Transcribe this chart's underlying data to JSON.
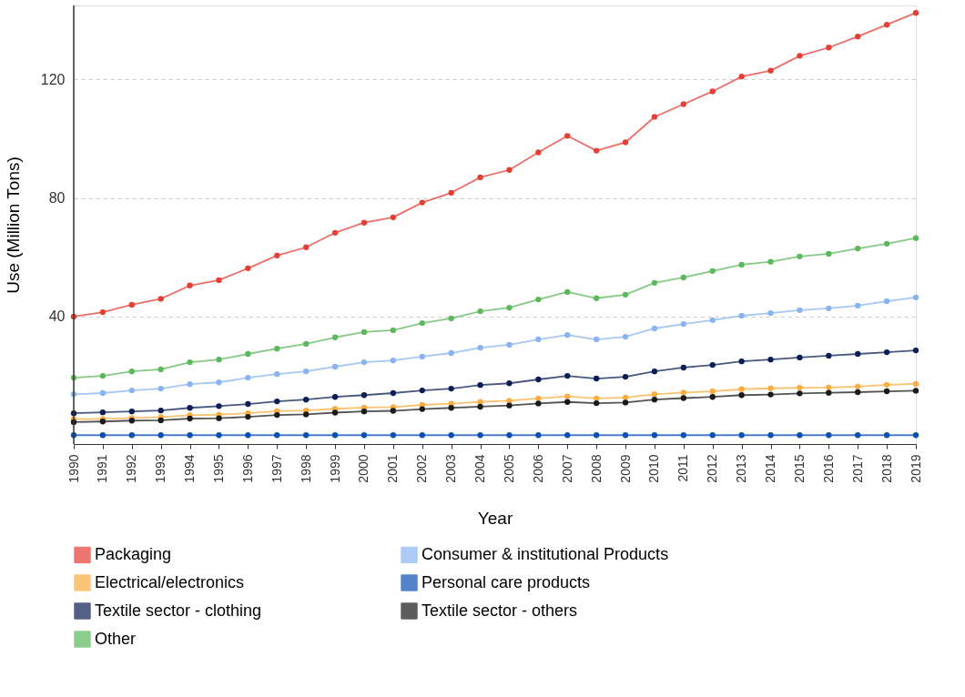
{
  "chart_data": {
    "type": "line",
    "xlabel": "Year",
    "ylabel": "Use (Million Tons)",
    "categories": [
      "1990",
      "1991",
      "1992",
      "1993",
      "1994",
      "1995",
      "1996",
      "1997",
      "1998",
      "1999",
      "2000",
      "2001",
      "2002",
      "2003",
      "2004",
      "2005",
      "2006",
      "2007",
      "2008",
      "2009",
      "2010",
      "2011",
      "2012",
      "2013",
      "2014",
      "2015",
      "2016",
      "2017",
      "2018",
      "2019"
    ],
    "series": [
      {
        "name": "Packaging",
        "color": "#e53e35",
        "values": [
          40,
          41.5,
          44,
          46,
          50.5,
          52.3,
          56.3,
          60.6,
          63.4,
          68.3,
          71.7,
          73.5,
          78.5,
          81.8,
          87,
          89.5,
          95.4,
          101,
          96,
          98.8,
          107.4,
          111.7,
          116,
          121,
          123,
          128,
          130.8,
          134.5,
          138.5,
          142.5
        ]
      },
      {
        "name": "Consumer & institutional Products",
        "color": "#8ab4f0",
        "values": [
          13.8,
          14.2,
          15.1,
          15.7,
          17.2,
          17.8,
          19.4,
          20.6,
          21.5,
          23.1,
          24.6,
          25.2,
          26.5,
          27.7,
          29.5,
          30.5,
          32.3,
          33.8,
          32.3,
          33.2,
          36,
          37.5,
          38.8,
          40.3,
          41.2,
          42.2,
          42.8,
          43.7,
          45.2,
          46.5
        ]
      },
      {
        "name": "Electrical/electronics",
        "color": "#fbad3f",
        "values": [
          5.4,
          5.5,
          5.8,
          6.1,
          6.7,
          6.9,
          7.4,
          8.1,
          8.3,
          8.9,
          9.3,
          9.5,
          10.2,
          10.6,
          11.2,
          11.6,
          12.4,
          13.1,
          12.4,
          12.7,
          13.8,
          14.4,
          14.8,
          15.5,
          15.8,
          16,
          16.1,
          16.4,
          17,
          17.3
        ]
      },
      {
        "name": "Personal care products",
        "color": "#0d4fb5",
        "values": [
          0,
          0,
          0,
          0,
          0,
          0,
          0,
          0,
          0,
          0,
          0,
          0,
          0,
          0,
          0,
          0,
          0,
          0,
          0,
          0,
          0,
          0,
          0,
          0,
          0,
          0,
          0,
          0,
          0,
          0
        ]
      },
      {
        "name": "Textile sector - clothing",
        "color": "#0b1f55",
        "values": [
          7.4,
          7.7,
          8,
          8.3,
          9.2,
          9.8,
          10.5,
          11.4,
          12,
          12.9,
          13.5,
          14.2,
          15.1,
          15.7,
          16.9,
          17.5,
          18.8,
          20,
          19.1,
          19.7,
          21.5,
          22.8,
          23.7,
          24.9,
          25.5,
          26.2,
          26.8,
          27.4,
          28,
          28.6
        ]
      },
      {
        "name": "Textile sector - others",
        "color": "#1a1a1a",
        "values": [
          4.4,
          4.6,
          4.9,
          5,
          5.6,
          5.7,
          6.2,
          6.8,
          7,
          7.6,
          8,
          8.2,
          8.8,
          9.2,
          9.6,
          10,
          10.7,
          11.2,
          10.8,
          11,
          12,
          12.5,
          12.9,
          13.5,
          13.7,
          14.1,
          14.3,
          14.5,
          14.8,
          15
        ]
      },
      {
        "name": "Other",
        "color": "#5cb85c",
        "values": [
          19.4,
          20,
          21.5,
          22.2,
          24.6,
          25.5,
          27.4,
          29.2,
          30.8,
          33,
          34.8,
          35.4,
          37.8,
          39.4,
          41.8,
          43,
          45.8,
          48.3,
          46.2,
          47.4,
          51.4,
          53.2,
          55.4,
          57.5,
          58.5,
          60.3,
          61.2,
          63,
          64.6,
          66.5
        ]
      }
    ],
    "ylim": [
      -3,
      145
    ],
    "yticks": [
      40,
      80,
      120
    ],
    "grid": "y",
    "legend": "bottom",
    "marker": "circle",
    "line_style": "solid"
  }
}
